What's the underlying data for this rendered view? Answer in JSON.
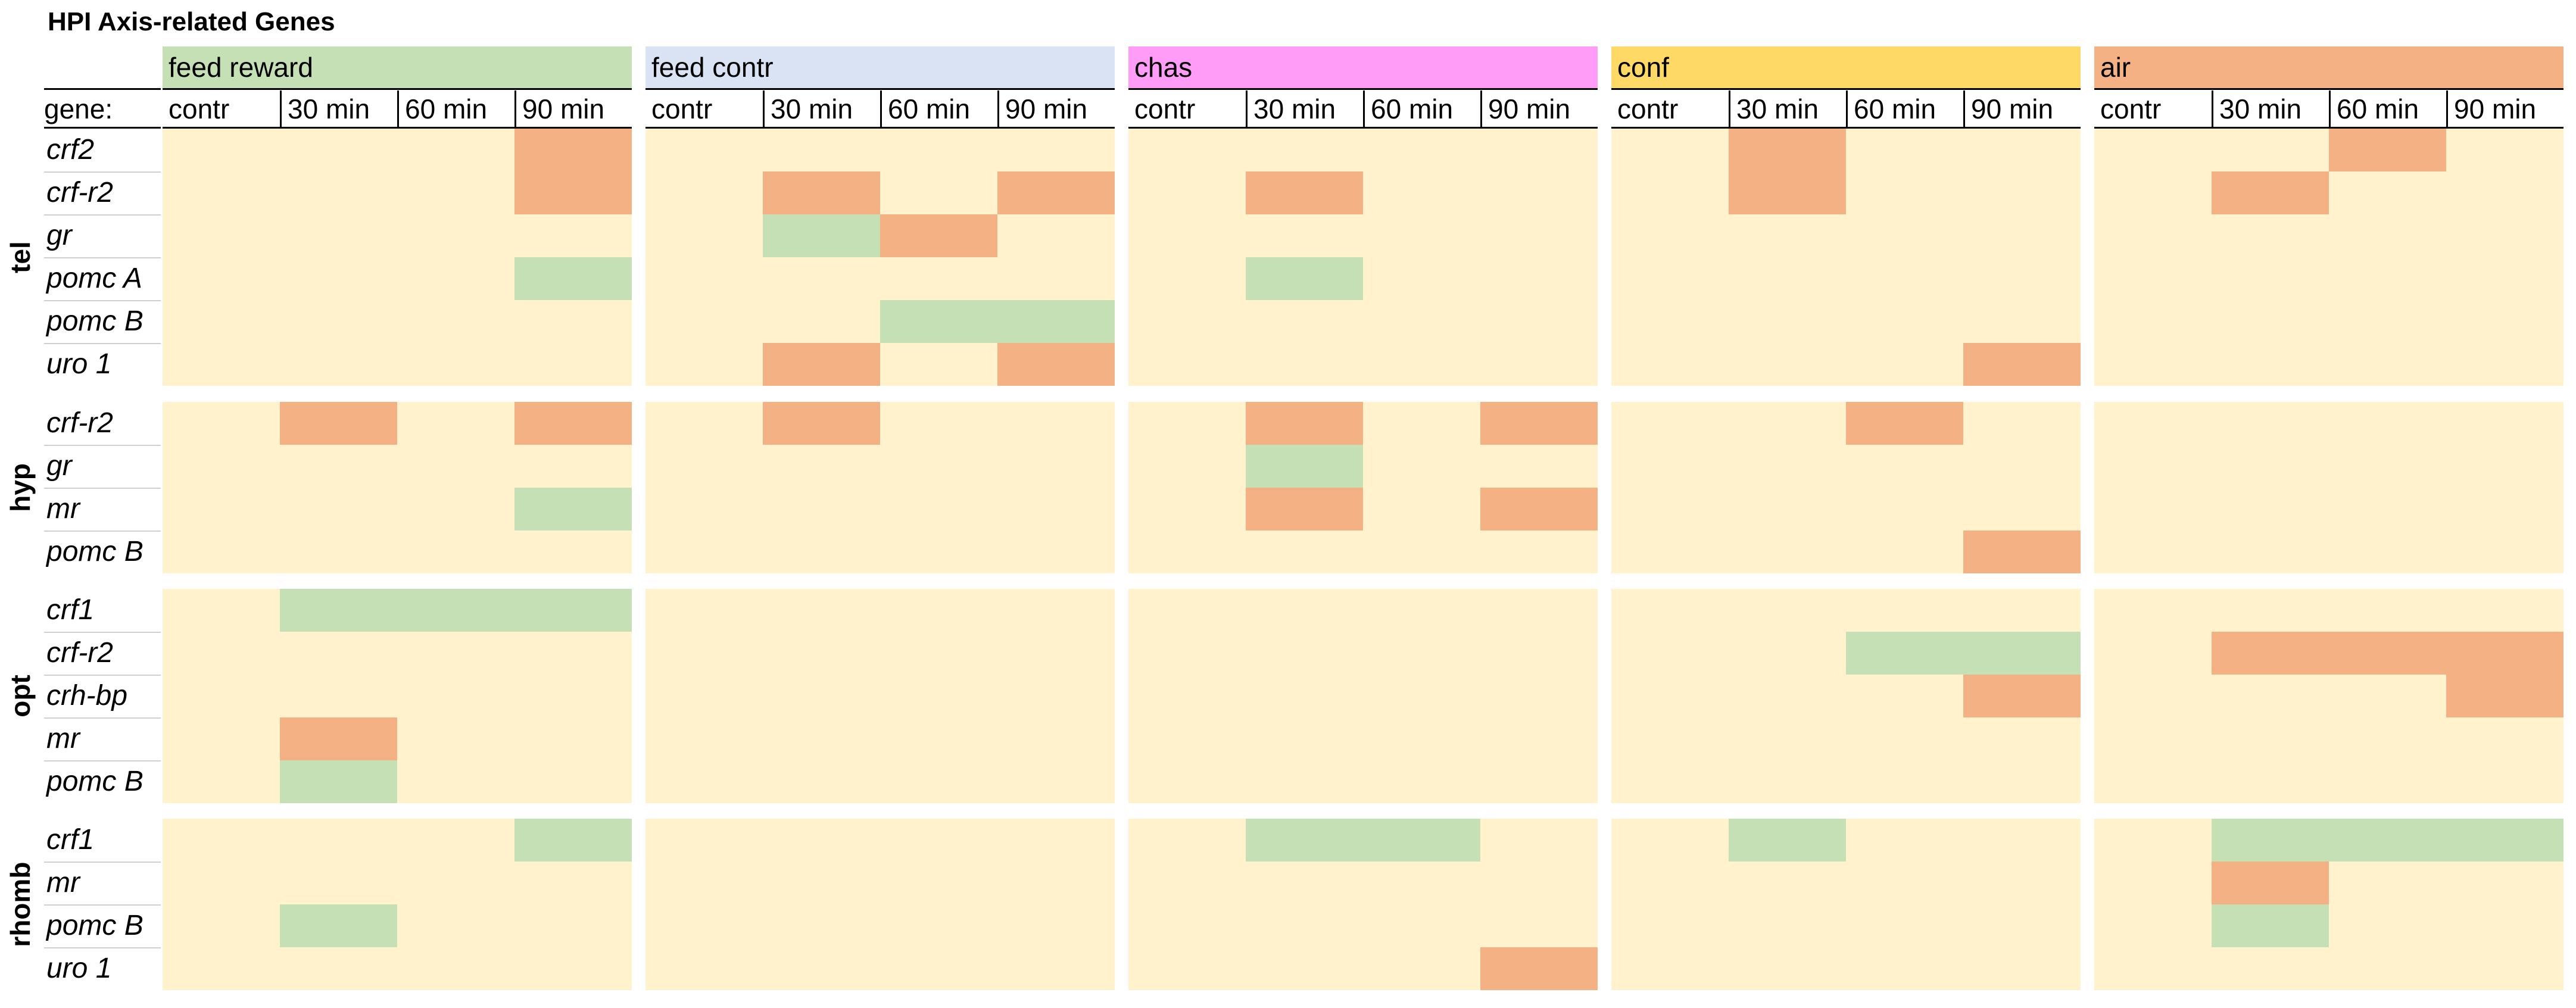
{
  "title": "HPI Axis-related Genes",
  "gene_header": "gene:",
  "colors": {
    "background": "#FFF2CC",
    "up": "#F4B183",
    "down": "#C5E0B4"
  },
  "chart_data": {
    "type": "heatmap",
    "title": "HPI Axis-related Genes",
    "conditions": [
      {
        "name": "feed reward",
        "color": "#C5E0B4"
      },
      {
        "name": "feed contr",
        "color": "#DAE3F3"
      },
      {
        "name": "chas",
        "color": "#FF9CF7"
      },
      {
        "name": "conf",
        "color": "#FFD966"
      },
      {
        "name": "air",
        "color": "#F4B183"
      }
    ],
    "timepoints": [
      "contr",
      "30 min",
      "60 min",
      "90 min"
    ],
    "legend": {
      "up": "#F4B183",
      "down": "#C5E0B4",
      "none": "#FFF2CC"
    },
    "regions": [
      {
        "name": "tel",
        "genes": [
          {
            "name": "crf2",
            "cells": [
              [
                "",
                "",
                "",
                "up"
              ],
              [
                "",
                "",
                "",
                ""
              ],
              [
                "",
                "",
                "",
                ""
              ],
              [
                "",
                "up",
                "",
                ""
              ],
              [
                "",
                "",
                "up",
                ""
              ]
            ]
          },
          {
            "name": "crf-r2",
            "cells": [
              [
                "",
                "",
                "",
                "up"
              ],
              [
                "",
                "up",
                "",
                "up"
              ],
              [
                "",
                "up",
                "",
                ""
              ],
              [
                "",
                "up",
                "",
                ""
              ],
              [
                "",
                "up",
                "",
                ""
              ]
            ]
          },
          {
            "name": "gr",
            "cells": [
              [
                "",
                "",
                "",
                ""
              ],
              [
                "",
                "down",
                "up",
                ""
              ],
              [
                "",
                "",
                "",
                ""
              ],
              [
                "",
                "",
                "",
                ""
              ],
              [
                "",
                "",
                "",
                ""
              ]
            ]
          },
          {
            "name": "pomc A",
            "cells": [
              [
                "",
                "",
                "",
                "down"
              ],
              [
                "",
                "",
                "",
                ""
              ],
              [
                "",
                "down",
                "",
                ""
              ],
              [
                "",
                "",
                "",
                ""
              ],
              [
                "",
                "",
                "",
                ""
              ]
            ]
          },
          {
            "name": "pomc B",
            "cells": [
              [
                "",
                "",
                "",
                ""
              ],
              [
                "",
                "",
                "down",
                "down"
              ],
              [
                "",
                "",
                "",
                ""
              ],
              [
                "",
                "",
                "",
                ""
              ],
              [
                "",
                "",
                "",
                ""
              ]
            ]
          },
          {
            "name": "uro 1",
            "cells": [
              [
                "",
                "",
                "",
                ""
              ],
              [
                "",
                "up",
                "",
                "up"
              ],
              [
                "",
                "",
                "",
                ""
              ],
              [
                "",
                "",
                "",
                "up"
              ],
              [
                "",
                "",
                "",
                ""
              ]
            ]
          }
        ]
      },
      {
        "name": "hyp",
        "genes": [
          {
            "name": "crf-r2",
            "cells": [
              [
                "",
                "up",
                "",
                "up"
              ],
              [
                "",
                "up",
                "",
                ""
              ],
              [
                "",
                "up",
                "",
                "up"
              ],
              [
                "",
                "",
                "up",
                ""
              ],
              [
                "",
                "",
                "",
                ""
              ]
            ]
          },
          {
            "name": "gr",
            "cells": [
              [
                "",
                "",
                "",
                ""
              ],
              [
                "",
                "",
                "",
                ""
              ],
              [
                "",
                "down",
                "",
                ""
              ],
              [
                "",
                "",
                "",
                ""
              ],
              [
                "",
                "",
                "",
                ""
              ]
            ]
          },
          {
            "name": "mr",
            "cells": [
              [
                "",
                "",
                "",
                "down"
              ],
              [
                "",
                "",
                "",
                ""
              ],
              [
                "",
                "up",
                "",
                "up"
              ],
              [
                "",
                "",
                "",
                ""
              ],
              [
                "",
                "",
                "",
                ""
              ]
            ]
          },
          {
            "name": "pomc B",
            "cells": [
              [
                "",
                "",
                "",
                ""
              ],
              [
                "",
                "",
                "",
                ""
              ],
              [
                "",
                "",
                "",
                ""
              ],
              [
                "",
                "",
                "",
                "up"
              ],
              [
                "",
                "",
                "",
                ""
              ]
            ]
          }
        ]
      },
      {
        "name": "opt",
        "genes": [
          {
            "name": "crf1",
            "cells": [
              [
                "",
                "down",
                "down",
                "down"
              ],
              [
                "",
                "",
                "",
                ""
              ],
              [
                "",
                "",
                "",
                ""
              ],
              [
                "",
                "",
                "",
                ""
              ],
              [
                "",
                "",
                "",
                ""
              ]
            ]
          },
          {
            "name": "crf-r2",
            "cells": [
              [
                "",
                "",
                "",
                ""
              ],
              [
                "",
                "",
                "",
                ""
              ],
              [
                "",
                "",
                "",
                ""
              ],
              [
                "",
                "",
                "down",
                "down"
              ],
              [
                "",
                "up",
                "up",
                "up"
              ]
            ]
          },
          {
            "name": "crh-bp",
            "cells": [
              [
                "",
                "",
                "",
                ""
              ],
              [
                "",
                "",
                "",
                ""
              ],
              [
                "",
                "",
                "",
                ""
              ],
              [
                "",
                "",
                "",
                "up"
              ],
              [
                "",
                "",
                "",
                "up"
              ]
            ]
          },
          {
            "name": "mr",
            "cells": [
              [
                "",
                "up",
                "",
                ""
              ],
              [
                "",
                "",
                "",
                ""
              ],
              [
                "",
                "",
                "",
                ""
              ],
              [
                "",
                "",
                "",
                ""
              ],
              [
                "",
                "",
                "",
                ""
              ]
            ]
          },
          {
            "name": "pomc B",
            "cells": [
              [
                "",
                "down",
                "",
                ""
              ],
              [
                "",
                "",
                "",
                ""
              ],
              [
                "",
                "",
                "",
                ""
              ],
              [
                "",
                "",
                "",
                ""
              ],
              [
                "",
                "",
                "",
                ""
              ]
            ]
          }
        ]
      },
      {
        "name": "rhomb",
        "genes": [
          {
            "name": "crf1",
            "cells": [
              [
                "",
                "",
                "",
                "down"
              ],
              [
                "",
                "",
                "",
                ""
              ],
              [
                "",
                "down",
                "down",
                ""
              ],
              [
                "",
                "down",
                "",
                ""
              ],
              [
                "",
                "down",
                "down",
                "down"
              ]
            ]
          },
          {
            "name": "mr",
            "cells": [
              [
                "",
                "",
                "",
                ""
              ],
              [
                "",
                "",
                "",
                ""
              ],
              [
                "",
                "",
                "",
                ""
              ],
              [
                "",
                "",
                "",
                ""
              ],
              [
                "",
                "up",
                "",
                ""
              ]
            ]
          },
          {
            "name": "pomc B",
            "cells": [
              [
                "",
                "down",
                "",
                ""
              ],
              [
                "",
                "",
                "",
                ""
              ],
              [
                "",
                "",
                "",
                ""
              ],
              [
                "",
                "",
                "",
                ""
              ],
              [
                "",
                "down",
                "",
                ""
              ]
            ]
          },
          {
            "name": "uro 1",
            "cells": [
              [
                "",
                "",
                "",
                ""
              ],
              [
                "",
                "",
                "",
                ""
              ],
              [
                "",
                "",
                "",
                "up"
              ],
              [
                "",
                "",
                "",
                ""
              ],
              [
                "",
                "",
                "",
                ""
              ]
            ]
          }
        ]
      }
    ]
  }
}
